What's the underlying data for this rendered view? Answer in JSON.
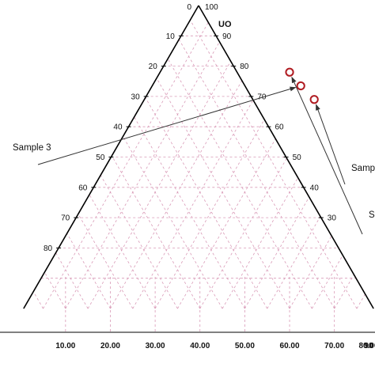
{
  "chart_data": {
    "type": "scatter",
    "subtype": "ternary",
    "title": "",
    "apex_label": "UO",
    "apex_top_left_label": "0",
    "apex_top_right_label": "100",
    "grid": true,
    "grid_style": "dashed-pink",
    "left_ticks": [
      "10",
      "20",
      "30",
      "40",
      "50",
      "60",
      "70",
      "80"
    ],
    "right_ticks": [
      "90",
      "80",
      "70",
      "60",
      "50",
      "40",
      "30"
    ],
    "bottom_ticks": [
      "10.00",
      "20.00",
      "30.00",
      "40.00",
      "50.00",
      "60.00",
      "70.00",
      "80.00",
      "90"
    ],
    "points": [
      {
        "name": "Sample 3",
        "uo": 31,
        "bottom": 65.5
      },
      {
        "name": "",
        "uo": 26.5,
        "bottom": 62.5
      },
      {
        "name": "",
        "uo": 22,
        "bottom": 60
      }
    ],
    "annotations": [
      {
        "text": "Sample 3",
        "target": 1
      },
      {
        "text": "Samp",
        "target": 0
      },
      {
        "text": "S",
        "target": 2
      }
    ],
    "marker_color": "#b01c22",
    "grid_color": "#d99ab7"
  }
}
